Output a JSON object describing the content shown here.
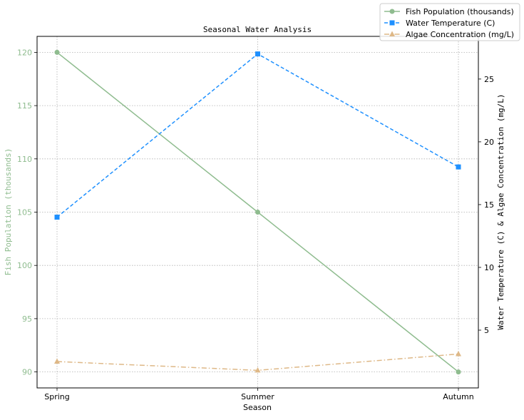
{
  "chart_data": {
    "type": "line",
    "title": "Seasonal Water Analysis",
    "xlabel": "Season",
    "ylabel_left": "Fish Population (thousands)",
    "ylabel_right": "Water Temperature (C) & Algae Concentration (mg/L)",
    "categories": [
      "Spring",
      "Summer",
      "Autumn"
    ],
    "ylim_left": [
      88.5,
      121.5
    ],
    "ylim_right": [
      0.4,
      28.4
    ],
    "yticks_left": [
      90,
      95,
      100,
      105,
      110,
      115,
      120
    ],
    "yticks_right": [
      5,
      10,
      15,
      20,
      25
    ],
    "grid": true,
    "legend_position": "top-right",
    "series": [
      {
        "name": "Fish Population (thousands)",
        "axis": "left",
        "values": [
          120,
          105,
          90
        ],
        "color": "#8fbc8f",
        "marker": "circle",
        "style": "solid"
      },
      {
        "name": "Water Temperature (C)",
        "axis": "right",
        "values": [
          14,
          27,
          18
        ],
        "color": "#1e90ff",
        "marker": "square",
        "style": "dashed"
      },
      {
        "name": "Algae Concentration (mg/L)",
        "axis": "right",
        "values": [
          2.5,
          1.8,
          3.1
        ],
        "color": "#deb887",
        "marker": "triangle",
        "style": "dashdot"
      }
    ]
  }
}
